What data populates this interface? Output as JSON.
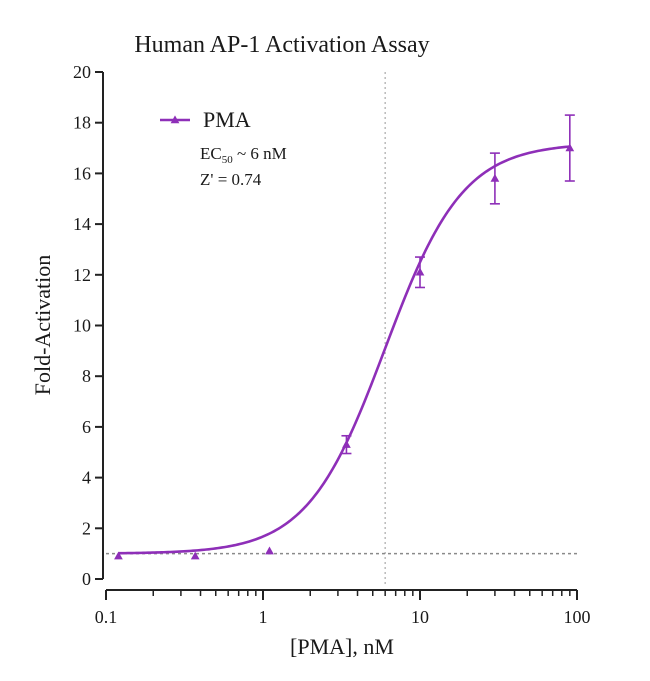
{
  "chart_data": {
    "type": "scatter",
    "title": "Human AP-1 Activation Assay",
    "xlabel": "[PMA], nM",
    "ylabel": "Fold-Activation",
    "x_scale": "log",
    "xlim": [
      0.1,
      100
    ],
    "ylim": [
      0,
      20
    ],
    "x_ticks": [
      0.1,
      1,
      10,
      100
    ],
    "x_tick_labels": [
      "0.1",
      "1",
      "10",
      "100"
    ],
    "y_ticks": [
      0,
      2,
      4,
      6,
      8,
      10,
      12,
      14,
      16,
      18,
      20
    ],
    "y_tick_labels": [
      "0",
      "2",
      "4",
      "6",
      "8",
      "10",
      "12",
      "14",
      "16",
      "18",
      "20"
    ],
    "grid": false,
    "legend_position": "top-left",
    "series": [
      {
        "name": "PMA",
        "color": "#8e2fb8",
        "marker": "triangle",
        "x": [
          0.12,
          0.37,
          1.1,
          3.4,
          10,
          30,
          90
        ],
        "y": [
          0.9,
          0.9,
          1.1,
          5.3,
          12.1,
          15.8,
          17.0
        ],
        "error": [
          0.1,
          0.1,
          0.1,
          0.35,
          0.6,
          1.0,
          1.3
        ],
        "fit": {
          "model": "4PL",
          "bottom": 1.0,
          "top": 17.2,
          "ec50": 6,
          "hill": 1.75
        }
      }
    ],
    "reference_lines": [
      {
        "orientation": "vertical",
        "x": 6,
        "style": "dotted",
        "color": "#b0b0b0"
      },
      {
        "orientation": "horizontal",
        "y": 1,
        "style": "dotted",
        "color": "#8a8a8a"
      }
    ],
    "annotations": {
      "ec50_prefix": "EC",
      "ec50_sub": "50",
      "ec50_suffix": " ~ 6 nM",
      "zprime": "Z' = 0.74"
    }
  }
}
